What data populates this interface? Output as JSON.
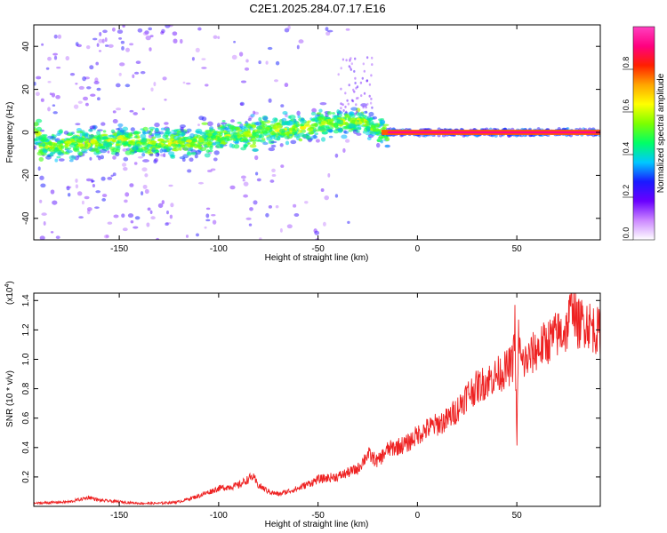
{
  "title": "C2E1.2025.284.07.17.E16",
  "chart_data": [
    {
      "type": "heatmap",
      "title": "C2E1.2025.284.07.17.E16",
      "xlabel": "Height of straight line (km)",
      "ylabel": "Frequency (Hz)",
      "xlim": [
        -193,
        92
      ],
      "ylim": [
        -50,
        50
      ],
      "xticks": [
        -150,
        -100,
        -50,
        0,
        50
      ],
      "yticks": [
        -40,
        -20,
        0,
        20,
        40
      ],
      "ridge": [
        {
          "x": -190,
          "f": -7
        },
        {
          "x": -170,
          "f": -5
        },
        {
          "x": -150,
          "f": -4
        },
        {
          "x": -130,
          "f": -5
        },
        {
          "x": -110,
          "f": -4
        },
        {
          "x": -100,
          "f": -2
        },
        {
          "x": -80,
          "f": 0
        },
        {
          "x": -60,
          "f": 2
        },
        {
          "x": -45,
          "f": 4
        },
        {
          "x": -35,
          "f": 5
        },
        {
          "x": -28,
          "f": 6
        },
        {
          "x": -22,
          "f": 2
        },
        {
          "x": -15,
          "f": 0
        },
        {
          "x": 0,
          "f": 0
        },
        {
          "x": 91,
          "f": 0
        }
      ],
      "colorbar": {
        "label": "Normalized spectral amplitude",
        "range": [
          0,
          1
        ],
        "ticks": [
          "0.0",
          "0.2",
          "0.4",
          "0.6",
          "0.8"
        ],
        "colors": [
          "#ffffff",
          "#cc88ff",
          "#6a00ff",
          "#1a1aff",
          "#00c8ff",
          "#00ff66",
          "#7cff00",
          "#ffff00",
          "#ffa500",
          "#ff2000",
          "#ff0080",
          "#ff40c0"
        ]
      }
    },
    {
      "type": "line",
      "xlabel": "Height of straight line (km)",
      "ylabel": "SNR (10 * v/v)",
      "scale_label": "(x10",
      "scale_exp": "4",
      "scale_close": ")",
      "xlim": [
        -193,
        92
      ],
      "ylim": [
        0,
        1.45
      ],
      "xticks": [
        -150,
        -100,
        -50,
        0,
        50
      ],
      "yticks": [
        0.2,
        0.4,
        0.6,
        0.8,
        1.0,
        1.2,
        1.4
      ],
      "color": "#ee2222",
      "series": [
        {
          "name": "SNR",
          "x": [
            -193,
            -175,
            -165,
            -160,
            -150,
            -140,
            -130,
            -120,
            -110,
            -100,
            -90,
            -83,
            -80,
            -75,
            -70,
            -60,
            -50,
            -40,
            -30,
            -25,
            -20,
            -15,
            -10,
            -5,
            0,
            5,
            10,
            15,
            20,
            25,
            30,
            35,
            40,
            45,
            48,
            49,
            50,
            51,
            52,
            55,
            60,
            65,
            70,
            75,
            77,
            78,
            80,
            85,
            88,
            92
          ],
          "y": [
            0.02,
            0.03,
            0.06,
            0.04,
            0.03,
            0.02,
            0.02,
            0.03,
            0.07,
            0.12,
            0.14,
            0.2,
            0.14,
            0.1,
            0.08,
            0.12,
            0.18,
            0.2,
            0.25,
            0.35,
            0.3,
            0.38,
            0.4,
            0.42,
            0.48,
            0.52,
            0.55,
            0.58,
            0.65,
            0.75,
            0.8,
            0.84,
            0.88,
            0.92,
            0.96,
            1.25,
            0.4,
            1.22,
            0.95,
            0.98,
            1.05,
            1.1,
            1.15,
            1.18,
            1.3,
            1.42,
            1.22,
            1.24,
            1.2,
            1.16
          ]
        }
      ]
    }
  ]
}
